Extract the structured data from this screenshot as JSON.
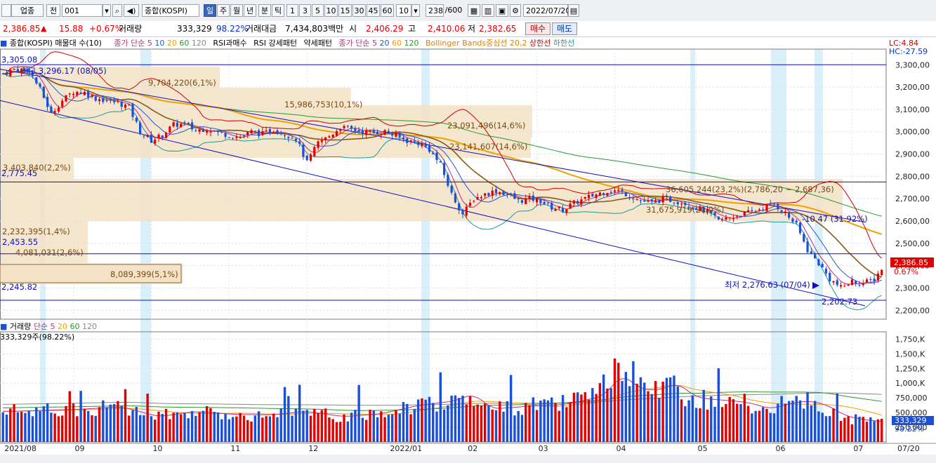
{
  "toolbar": {
    "market": "업종",
    "prev_label": "전",
    "code": "001",
    "name": "종합(KOSPI)",
    "periods": [
      "일",
      "주",
      "월",
      "년",
      "분",
      "틱"
    ],
    "period_selected": "일",
    "intervals": [
      "1",
      "3",
      "5",
      "10",
      "15",
      "30",
      "45",
      "60"
    ],
    "interval_value": "10",
    "count": "238",
    "count_max": "/600",
    "date": "2022/07/20"
  },
  "quote": {
    "price": "2,386.85",
    "change_arrow": "▲",
    "change": "15.88",
    "change_pct": "+0.67%",
    "volume_label": "거래량",
    "volume": "333,329",
    "volume_ratio": "98.22%",
    "amount_label": "거래대금",
    "amount": "7,434,803백만",
    "open_label": "시",
    "open": "2,406.29",
    "high_label": "고",
    "high": "2,410.06",
    "low_label": "저",
    "low": "2,382.65",
    "buy_label": "매수",
    "sell_label": "매도"
  },
  "legend_price": {
    "title": "종합(KOSPI) 매물대 수(10)",
    "ma_label": "종가 단순",
    "ma_periods": [
      "5",
      "10",
      "20",
      "60",
      "120"
    ],
    "rsi_label": "RSI과매수",
    "rsi_pattern": "RSI 강세패턴",
    "rsi_weak": "약세패턴",
    "ma2_label": "종가 단순",
    "ma2_periods": [
      "5",
      "20",
      "60",
      "120"
    ],
    "bb_label": "Bollinger Bands중심선 20,2",
    "bb_upper": "상한선",
    "bb_lower": "하한선"
  },
  "legend_volume": {
    "title": "거래량",
    "ma_label": "단순",
    "ma_periods": [
      "5",
      "20",
      "60",
      "120"
    ],
    "current": "333,329주(98.22%)"
  },
  "top_right": {
    "lc": "LC:4.84",
    "hc": "HC:-27.59"
  },
  "chart_data": {
    "type": "candlestick",
    "price_axis": {
      "ticks": [
        "3,300,00",
        "3,200,00",
        "3,100,00",
        "3,000,00",
        "2,900,00",
        "2,800,00",
        "2,700,00",
        "2,600,00",
        "2,500,00",
        "2,400,00",
        "2,300,00",
        "2,200,00"
      ],
      "tick_values": [
        3300,
        3200,
        3100,
        3000,
        2900,
        2800,
        2700,
        2600,
        2500,
        2400,
        2300,
        2200
      ],
      "ylim": [
        2160,
        3370
      ]
    },
    "volume_axis": {
      "ticks": [
        "1,750,K",
        "1,500,K",
        "1,250,K",
        "1,000,K",
        "750,000",
        "500,000",
        "250,000"
      ],
      "tick_values": [
        1750,
        1500,
        1250,
        1000,
        750,
        500,
        250
      ],
      "ylim": [
        0,
        1850
      ]
    },
    "x_axis": {
      "labels": [
        "2021/08",
        "09",
        "10",
        "11",
        "12",
        "2022/01",
        "02",
        "03",
        "04",
        "05",
        "06",
        "07"
      ],
      "label_index": [
        0,
        19,
        40,
        61,
        82,
        104,
        125,
        144,
        165,
        187,
        208,
        229
      ],
      "last_label": "07/20",
      "count": 238
    },
    "price_path": [
      [
        0,
        3260
      ],
      [
        3,
        3280
      ],
      [
        7,
        3275
      ],
      [
        10,
        3190
      ],
      [
        13,
        3080
      ],
      [
        16,
        3140
      ],
      [
        19,
        3180
      ],
      [
        22,
        3175
      ],
      [
        25,
        3150
      ],
      [
        28,
        3140
      ],
      [
        31,
        3130
      ],
      [
        34,
        3110
      ],
      [
        37,
        3000
      ],
      [
        40,
        2960
      ],
      [
        43,
        2985
      ],
      [
        46,
        3030
      ],
      [
        49,
        3035
      ],
      [
        52,
        3005
      ],
      [
        55,
        3015
      ],
      [
        58,
        2995
      ],
      [
        61,
        2985
      ],
      [
        64,
        2975
      ],
      [
        67,
        3000
      ],
      [
        70,
        2990
      ],
      [
        73,
        3010
      ],
      [
        76,
        2990
      ],
      [
        79,
        2970
      ],
      [
        82,
        2860
      ],
      [
        85,
        2950
      ],
      [
        88,
        2980
      ],
      [
        91,
        3020
      ],
      [
        94,
        3010
      ],
      [
        97,
        3000
      ],
      [
        100,
        2995
      ],
      [
        103,
        3000
      ],
      [
        106,
        2980
      ],
      [
        109,
        2960
      ],
      [
        112,
        2950
      ],
      [
        115,
        2920
      ],
      [
        118,
        2850
      ],
      [
        121,
        2720
      ],
      [
        124,
        2630
      ],
      [
        127,
        2700
      ],
      [
        130,
        2720
      ],
      [
        133,
        2735
      ],
      [
        136,
        2720
      ],
      [
        139,
        2690
      ],
      [
        142,
        2700
      ],
      [
        145,
        2690
      ],
      [
        148,
        2660
      ],
      [
        151,
        2650
      ],
      [
        154,
        2680
      ],
      [
        157,
        2700
      ],
      [
        160,
        2720
      ],
      [
        163,
        2735
      ],
      [
        166,
        2735
      ],
      [
        169,
        2715
      ],
      [
        172,
        2690
      ],
      [
        175,
        2680
      ],
      [
        178,
        2700
      ],
      [
        181,
        2690
      ],
      [
        184,
        2680
      ],
      [
        187,
        2660
      ],
      [
        190,
        2640
      ],
      [
        193,
        2600
      ],
      [
        196,
        2615
      ],
      [
        199,
        2630
      ],
      [
        202,
        2640
      ],
      [
        205,
        2660
      ],
      [
        208,
        2675
      ],
      [
        211,
        2635
      ],
      [
        214,
        2580
      ],
      [
        217,
        2470
      ],
      [
        220,
        2410
      ],
      [
        223,
        2340
      ],
      [
        226,
        2300
      ],
      [
        229,
        2330
      ],
      [
        232,
        2320
      ],
      [
        235,
        2340
      ],
      [
        237,
        2387
      ]
    ],
    "volume_path": [
      [
        0,
        520
      ],
      [
        10,
        540
      ],
      [
        20,
        560
      ],
      [
        30,
        600
      ],
      [
        40,
        430
      ],
      [
        50,
        520
      ],
      [
        60,
        470
      ],
      [
        70,
        460
      ],
      [
        80,
        520
      ],
      [
        90,
        430
      ],
      [
        100,
        480
      ],
      [
        110,
        620
      ],
      [
        120,
        700
      ],
      [
        125,
        820
      ],
      [
        130,
        560
      ],
      [
        140,
        610
      ],
      [
        150,
        640
      ],
      [
        160,
        780
      ],
      [
        165,
        1150
      ],
      [
        170,
        900
      ],
      [
        175,
        880
      ],
      [
        180,
        1000
      ],
      [
        185,
        760
      ],
      [
        190,
        720
      ],
      [
        195,
        700
      ],
      [
        200,
        660
      ],
      [
        205,
        560
      ],
      [
        210,
        650
      ],
      [
        215,
        700
      ],
      [
        220,
        640
      ],
      [
        225,
        450
      ],
      [
        230,
        380
      ],
      [
        237,
        333
      ]
    ],
    "last_price": "2,386.85",
    "last_change_pct": "0.67%",
    "last_volume": "333,329",
    "last_volume_ratio": "98.22%"
  },
  "annotations": {
    "label_3305": "3,305.08",
    "high_label": "최고 3,296.17 (08/05)",
    "vp1": "9,704,220(6,1%)",
    "vp2": "15,986,753(10,1%)",
    "vp3": "23,091,496(14,6%)",
    "vp4": "23,141,607(14,6%)",
    "vp5": "3,403,840(2,2%)",
    "label_2775": "2,775.45",
    "vp6": "36,605,244(23,2%)(2,786,20 ~ 2,687,36)",
    "vp7": "31,675,919(20,0%)",
    "label_1047": "-10.47 (31.92%)",
    "vp8": "2,232,395(1,4%)",
    "label_2453": "2,453.55",
    "vp9": "4,081,031(2,6%)",
    "vp10": "8,089,399(5,1%)",
    "low_label": "최저 2,276.63 (07/04)",
    "label_2245": "2,245.82",
    "label_2202": "2,202.73"
  },
  "colors": {
    "up": "#e00000",
    "down": "#1a4fd6",
    "ma5": "#c8287a",
    "ma10": "#2255cc",
    "ma20": "#f0a000",
    "ma60": "#2a9a2a",
    "ma120": "#888888",
    "volume_profile": "#f3e2c6",
    "highlight": "#d9f0fb",
    "trend": "#1010c0"
  }
}
